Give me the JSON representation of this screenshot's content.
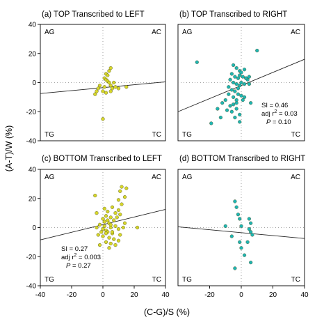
{
  "figure": {
    "xlabel": "(C-G)/S (%)",
    "ylabel": "(A-T)/W (%)"
  },
  "chart_data": [
    {
      "type": "scatter",
      "panel": "a",
      "title": "(a) TOP Transcribed to LEFT",
      "xlim": [
        -40,
        40
      ],
      "ylim": [
        -40,
        40
      ],
      "xticks": [],
      "yticks": [
        "40",
        "20",
        "0",
        "-20",
        "-40"
      ],
      "corners": {
        "tl": "AG",
        "tr": "AC",
        "bl": "TG",
        "br": "TC"
      },
      "marker_color": "#d6d62a",
      "points": [
        [
          2,
          6
        ],
        [
          3,
          5
        ],
        [
          4,
          8
        ],
        [
          5,
          10
        ],
        [
          1,
          3
        ],
        [
          2,
          2
        ],
        [
          3,
          1
        ],
        [
          4,
          0
        ],
        [
          5,
          -2
        ],
        [
          6,
          -4
        ],
        [
          7,
          0
        ],
        [
          8,
          -3
        ],
        [
          10,
          -4
        ],
        [
          -2,
          -2
        ],
        [
          -3,
          -4
        ],
        [
          0,
          -6
        ],
        [
          -5,
          -8
        ],
        [
          -4,
          -6
        ],
        [
          5,
          -6
        ],
        [
          2,
          -7
        ],
        [
          15,
          -3
        ],
        [
          0,
          -25
        ],
        [
          1,
          -3
        ]
      ],
      "fit": {
        "x": [
          -40,
          40
        ],
        "y": [
          -7.5,
          0.5
        ]
      },
      "stats": null
    },
    {
      "type": "scatter",
      "panel": "b",
      "title": "(b) TOP Transcribed to RIGHT",
      "xlim": [
        -40,
        40
      ],
      "ylim": [
        -40,
        40
      ],
      "xticks": [],
      "yticks": [],
      "corners": {
        "tl": "AG",
        "tr": "AC",
        "bl": "TG",
        "br": "TC"
      },
      "marker_color": "#1fb5b2",
      "points": [
        [
          -28,
          14
        ],
        [
          10,
          22
        ],
        [
          -5,
          12
        ],
        [
          -3,
          10
        ],
        [
          -1,
          8
        ],
        [
          0,
          7
        ],
        [
          2,
          9
        ],
        [
          -6,
          6
        ],
        [
          -4,
          4
        ],
        [
          -2,
          3
        ],
        [
          -1,
          5
        ],
        [
          1,
          4
        ],
        [
          3,
          3
        ],
        [
          4,
          2
        ],
        [
          -7,
          2
        ],
        [
          -5,
          0
        ],
        [
          -3,
          -1
        ],
        [
          -1,
          -2
        ],
        [
          0,
          0
        ],
        [
          2,
          -1
        ],
        [
          5,
          -1
        ],
        [
          -8,
          -3
        ],
        [
          -6,
          -5
        ],
        [
          -4,
          -6
        ],
        [
          -2,
          -8
        ],
        [
          0,
          -9
        ],
        [
          2,
          -10
        ],
        [
          1,
          -12
        ],
        [
          -3,
          -14
        ],
        [
          -5,
          -15
        ],
        [
          -7,
          -16
        ],
        [
          -9,
          -19
        ],
        [
          -3,
          -18
        ],
        [
          -1,
          -22
        ],
        [
          -13,
          -24
        ],
        [
          -19,
          -28
        ],
        [
          -4,
          -24
        ],
        [
          -1,
          -27
        ],
        [
          -3,
          -12
        ],
        [
          -10,
          -12
        ],
        [
          -12,
          -14
        ],
        [
          6,
          -14
        ],
        [
          -15,
          -18
        ],
        [
          -6,
          -20
        ],
        [
          3,
          3
        ],
        [
          5,
          4
        ],
        [
          -2,
          -4
        ],
        [
          -8,
          -8
        ],
        [
          -5,
          -10
        ]
      ],
      "fit": {
        "x": [
          -40,
          40
        ],
        "y": [
          -20,
          16
        ]
      },
      "stats": {
        "si": "SI  =  0.46",
        "adj": "adj r",
        "adj_exp": "2",
        "adj_val": " =  0.03",
        "p": "P",
        "p_val": " =  0.10"
      }
    },
    {
      "type": "scatter",
      "panel": "c",
      "title": "(c) BOTTOM Transcribed to LEFT",
      "xlim": [
        -40,
        40
      ],
      "ylim": [
        -40,
        40
      ],
      "xticks": [
        "-40",
        "-20",
        "0",
        "20",
        "40"
      ],
      "yticks": [
        "40",
        "20",
        "0",
        "-20",
        "-40"
      ],
      "corners": {
        "tl": "AG",
        "tr": "AC",
        "bl": "TG",
        "br": "TC"
      },
      "marker_color": "#d6d62a",
      "points": [
        [
          12,
          28
        ],
        [
          15,
          27
        ],
        [
          -5,
          22
        ],
        [
          11,
          25
        ],
        [
          14,
          21
        ],
        [
          10,
          19
        ],
        [
          12,
          16
        ],
        [
          6,
          14
        ],
        [
          10,
          12
        ],
        [
          3,
          11
        ],
        [
          8,
          10
        ],
        [
          11,
          9
        ],
        [
          2,
          8
        ],
        [
          5,
          7
        ],
        [
          9,
          7
        ],
        [
          0,
          6
        ],
        [
          3,
          5
        ],
        [
          7,
          5
        ],
        [
          1,
          4
        ],
        [
          4,
          3
        ],
        [
          -2,
          2
        ],
        [
          1,
          1
        ],
        [
          5,
          2
        ],
        [
          8,
          1
        ],
        [
          -4,
          0
        ],
        [
          0,
          -1
        ],
        [
          2,
          -2
        ],
        [
          5,
          0
        ],
        [
          10,
          -1
        ],
        [
          13,
          0
        ],
        [
          22,
          0
        ],
        [
          -1,
          -3
        ],
        [
          3,
          -3
        ],
        [
          6,
          -4
        ],
        [
          11,
          -5
        ],
        [
          -3,
          -5
        ],
        [
          0,
          -6
        ],
        [
          4,
          -7
        ],
        [
          7,
          -8
        ],
        [
          10,
          -9
        ],
        [
          2,
          -10
        ],
        [
          5,
          -11
        ],
        [
          8,
          -12
        ],
        [
          -2,
          -12
        ],
        [
          4,
          -14
        ],
        [
          6,
          -3
        ],
        [
          14,
          3
        ],
        [
          1,
          13
        ],
        [
          -4,
          10
        ],
        [
          2,
          -4
        ]
      ],
      "fit": {
        "x": [
          -40,
          40
        ],
        "y": [
          -8.5,
          12.5
        ]
      },
      "stats": {
        "si": "SI  =  0.27",
        "adj": "adj r",
        "adj_exp": "2",
        "adj_val": " =  0.003",
        "p": "P",
        "p_val": " =  0.27"
      }
    },
    {
      "type": "scatter",
      "panel": "d",
      "title": "(d) BOTTOM Transcribed to RIGHT",
      "xlim": [
        -40,
        40
      ],
      "ylim": [
        -40,
        40
      ],
      "xticks": [
        "-20",
        "0",
        "20",
        "40"
      ],
      "yticks": [],
      "corners": {
        "tl": "AG",
        "tr": "AC",
        "bl": "TG",
        "br": "TC"
      },
      "marker_color": "#1fb5b2",
      "points": [
        [
          -4,
          18
        ],
        [
          -3,
          14
        ],
        [
          -2,
          9
        ],
        [
          -1,
          6
        ],
        [
          5,
          6
        ],
        [
          6,
          3
        ],
        [
          -10,
          1
        ],
        [
          0,
          1
        ],
        [
          5,
          -1
        ],
        [
          6,
          -3
        ],
        [
          7,
          -5
        ],
        [
          -6,
          -6
        ],
        [
          -1,
          -10
        ],
        [
          4,
          -10
        ],
        [
          0,
          -14
        ],
        [
          2,
          -19
        ],
        [
          -4,
          -28
        ],
        [
          6,
          -24
        ]
      ],
      "fit": {
        "x": [
          -40,
          40
        ],
        "y": [
          0.5,
          -7.5
        ]
      },
      "stats": null
    }
  ]
}
